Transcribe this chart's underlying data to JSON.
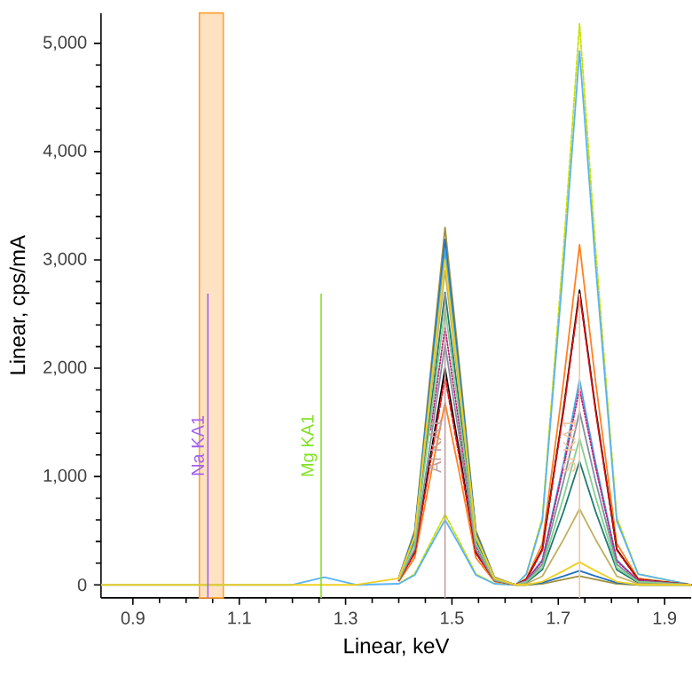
{
  "chart_data": {
    "type": "line",
    "xlabel": "Linear, keV",
    "ylabel": "Linear, cps/mA",
    "x": [
      0.84,
      1.2,
      1.26,
      1.32,
      1.4,
      1.43,
      1.46,
      1.487,
      1.515,
      1.545,
      1.58,
      1.62,
      1.64,
      1.67,
      1.71,
      1.74,
      1.77,
      1.81,
      1.85,
      1.95
    ],
    "series": [
      {
        "color": "#c8e000",
        "line_style": "dashed",
        "values": [
          null,
          null,
          null,
          null,
          10,
          100,
          390,
          650,
          390,
          100,
          10,
          0,
          100,
          620,
          3110,
          5180,
          3110,
          620,
          100,
          0
        ]
      },
      {
        "color": "#5ab4f0",
        "values": [
          0,
          0,
          70,
          0,
          10,
          90,
          360,
          600,
          360,
          90,
          10,
          0,
          100,
          590,
          2960,
          4930,
          2960,
          590,
          100,
          0
        ]
      },
      {
        "color": "#ff8020",
        "values": [
          null,
          null,
          null,
          null,
          30,
          250,
          1010,
          1680,
          1010,
          250,
          30,
          0,
          60,
          380,
          1880,
          3140,
          1880,
          380,
          60,
          0
        ]
      },
      {
        "color": "#000000",
        "values": [
          null,
          null,
          null,
          null,
          40,
          300,
          1200,
          2000,
          1200,
          300,
          40,
          0,
          50,
          330,
          1630,
          2720,
          1630,
          330,
          50,
          0
        ]
      },
      {
        "color": "#e01010",
        "line_style": "dashed",
        "values": [
          null,
          null,
          null,
          null,
          40,
          290,
          1150,
          1920,
          1150,
          290,
          40,
          0,
          50,
          320,
          1610,
          2690,
          1610,
          320,
          50,
          0
        ]
      },
      {
        "color": "#a09040",
        "values": [
          null,
          null,
          null,
          null,
          70,
          500,
          1980,
          3300,
          1980,
          500,
          70,
          0,
          0,
          10,
          50,
          80,
          50,
          10,
          0,
          0
        ]
      },
      {
        "color": "#2070c0",
        "values": [
          null,
          null,
          null,
          null,
          60,
          480,
          1910,
          3190,
          1910,
          480,
          60,
          0,
          0,
          20,
          80,
          130,
          80,
          20,
          0,
          0
        ]
      },
      {
        "color": "#40a8e0",
        "values": [
          null,
          null,
          null,
          null,
          60,
          460,
          1850,
          3090,
          1850,
          460,
          60,
          0,
          40,
          230,
          1130,
          1890,
          1130,
          230,
          40,
          0
        ]
      },
      {
        "color": "#207870",
        "values": [
          null,
          null,
          null,
          null,
          50,
          410,
          1620,
          2700,
          1620,
          410,
          50,
          0,
          20,
          140,
          680,
          1140,
          680,
          140,
          20,
          0
        ]
      },
      {
        "color": "#c02080",
        "line_style": "dotted",
        "values": [
          null,
          null,
          null,
          null,
          null,
          null,
          1430,
          2380,
          1430,
          360,
          50,
          0,
          40,
          220,
          1090,
          1810,
          1090,
          220,
          40,
          0
        ]
      },
      {
        "color": "#8090a0",
        "values": [
          null,
          null,
          null,
          null,
          40,
          330,
          1330,
          2220,
          1330,
          330,
          40,
          0,
          30,
          190,
          960,
          1600,
          960,
          190,
          30,
          0
        ]
      },
      {
        "color": "#80d090",
        "values": [
          null,
          null,
          null,
          null,
          50,
          380,
          1530,
          2550,
          1530,
          380,
          50,
          0,
          30,
          160,
          810,
          1350,
          810,
          160,
          30,
          0
        ]
      },
      {
        "color": "#c0b060",
        "values": [
          null,
          null,
          null,
          null,
          60,
          440,
          1740,
          2900,
          1740,
          440,
          60,
          0,
          10,
          80,
          420,
          700,
          420,
          80,
          10,
          0
        ]
      },
      {
        "color": "#f0d020",
        "values": [
          0,
          0,
          0,
          0,
          60,
          450,
          1800,
          3000,
          1800,
          450,
          60,
          0,
          0,
          30,
          130,
          210,
          130,
          30,
          0,
          0
        ]
      }
    ],
    "xlim": [
      0.84,
      1.95
    ],
    "xticks": [
      0.9,
      1.1,
      1.3,
      1.5,
      1.7,
      1.9
    ],
    "ylim": [
      -120,
      5280
    ],
    "yticks": [
      {
        "value": 0,
        "label": "0"
      },
      {
        "value": 1000,
        "label": "1,000"
      },
      {
        "value": 2000,
        "label": "2,000"
      },
      {
        "value": 3000,
        "label": "3,000"
      },
      {
        "value": 4000,
        "label": "4,000"
      },
      {
        "value": 5000,
        "label": "5,000"
      }
    ],
    "ref_lines": [
      {
        "axis": "x",
        "value": 1.041,
        "label": "Na KA1",
        "color": "#a060f0"
      },
      {
        "axis": "x",
        "value": 1.254,
        "label": "Mg KA1",
        "color": "#80e020"
      },
      {
        "axis": "x",
        "value": 1.487,
        "label": "Al KA1",
        "color": "#c0a0a0"
      },
      {
        "axis": "x",
        "value": 1.74,
        "label": "Si KA1",
        "color": "#f0c8a0"
      }
    ],
    "bands": [
      {
        "axis": "x",
        "from": 1.025,
        "to": 1.07,
        "color": "#ffa030"
      }
    ],
    "grid": false,
    "marker": "none"
  }
}
